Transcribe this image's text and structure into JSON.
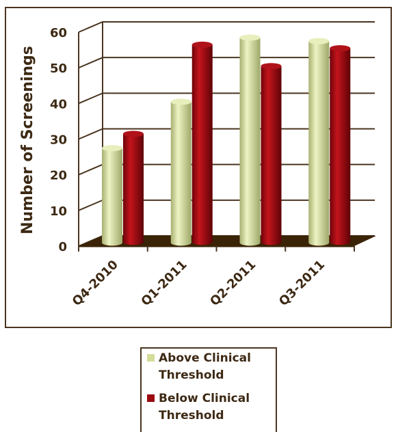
{
  "chart_data": {
    "type": "bar",
    "title": "",
    "xlabel": "",
    "ylabel": "Number of Screenings",
    "ylim": [
      0,
      60
    ],
    "yticks": [
      0,
      10,
      20,
      30,
      40,
      50,
      60
    ],
    "categories": [
      "Q4-2010",
      "Q1-2011",
      "Q2-2011",
      "Q3-2011"
    ],
    "series": [
      {
        "name": "Above Clinical Threshold",
        "values": [
          29,
          42,
          60,
          59
        ],
        "color": "#d4dc9a"
      },
      {
        "name": "Below Clinical Threshold",
        "values": [
          33,
          58,
          52,
          57
        ],
        "color": "#9b0a10"
      }
    ],
    "grid": true,
    "legend_position": "bottom",
    "style": "3d-cylinder"
  },
  "colors": {
    "axis_text": "#3d2914",
    "gridline": "#4a3520",
    "floor": "#3a2306",
    "frame": "#4a3520"
  }
}
